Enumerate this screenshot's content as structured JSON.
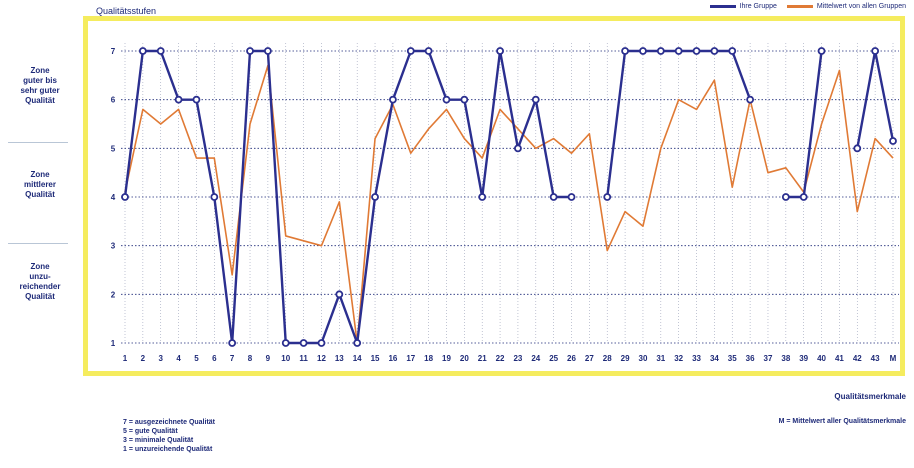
{
  "chart_data": {
    "type": "line",
    "ylabel": "Qualitätsstufen",
    "xlabel": "Qualitätsmerkmale",
    "ylim": [
      1,
      7
    ],
    "yticks": [
      "1",
      "2",
      "3",
      "4",
      "5",
      "6",
      "7"
    ],
    "categories": [
      "1",
      "2",
      "3",
      "4",
      "5",
      "6",
      "7",
      "8",
      "9",
      "10",
      "11",
      "12",
      "13",
      "14",
      "15",
      "16",
      "17",
      "18",
      "19",
      "20",
      "21",
      "22",
      "23",
      "24",
      "25",
      "26",
      "27",
      "28",
      "29",
      "30",
      "31",
      "32",
      "33",
      "34",
      "35",
      "36",
      "37",
      "38",
      "39",
      "40",
      "41",
      "42",
      "43",
      "M"
    ],
    "grid": true,
    "legend_position": "top-right",
    "series": [
      {
        "name": "Ihre Gruppe",
        "color": "#2b2f8f",
        "values": [
          4,
          7,
          7,
          6,
          6,
          4,
          1,
          7,
          7,
          1,
          1,
          1,
          2,
          1,
          4,
          6,
          7,
          7,
          6,
          6,
          4,
          7,
          5,
          6,
          4,
          4,
          null,
          4,
          7,
          7,
          7,
          7,
          7,
          7,
          7,
          6,
          null,
          4,
          4,
          7,
          null,
          5,
          7,
          5.15
        ]
      },
      {
        "name": "Mittelwert von allen Gruppen",
        "color": "#e07a35",
        "values": [
          4.1,
          5.8,
          5.5,
          5.8,
          4.8,
          4.8,
          2.4,
          5.5,
          6.7,
          3.2,
          3.1,
          3.0,
          3.9,
          1.0,
          5.2,
          5.9,
          4.9,
          5.4,
          5.8,
          5.2,
          4.8,
          5.8,
          5.4,
          5.0,
          5.2,
          4.9,
          5.3,
          2.9,
          3.7,
          3.4,
          5.0,
          6.0,
          5.8,
          6.4,
          4.2,
          6.0,
          4.5,
          4.6,
          4.1,
          5.5,
          6.6,
          3.7,
          5.2,
          4.8
        ]
      }
    ]
  },
  "zones": [
    {
      "lines": [
        "Zone",
        "guter bis",
        "sehr guter",
        "Qualität"
      ]
    },
    {
      "lines": [
        "Zone",
        "mittlerer",
        "Qualität"
      ]
    },
    {
      "lines": [
        "Zone",
        "unzu-",
        "reichender",
        "Qualität"
      ]
    }
  ],
  "legend": {
    "group_label": "Ihre Gruppe",
    "mean_label": "Mittelwert von allen Gruppen"
  },
  "notes": [
    "7 = ausgezeichnete Qualität",
    "5 = gute Qualität",
    "3 = minimale Qualität",
    "1 = unzureichende Qualität"
  ],
  "mean_note": "M = Mittelwert aller Qualitätsmerkmale",
  "colors": {
    "frame": "#f5ec5e",
    "navy": "#1e2a78",
    "group_line": "#2b2f8f",
    "mean_line": "#e07a35"
  }
}
